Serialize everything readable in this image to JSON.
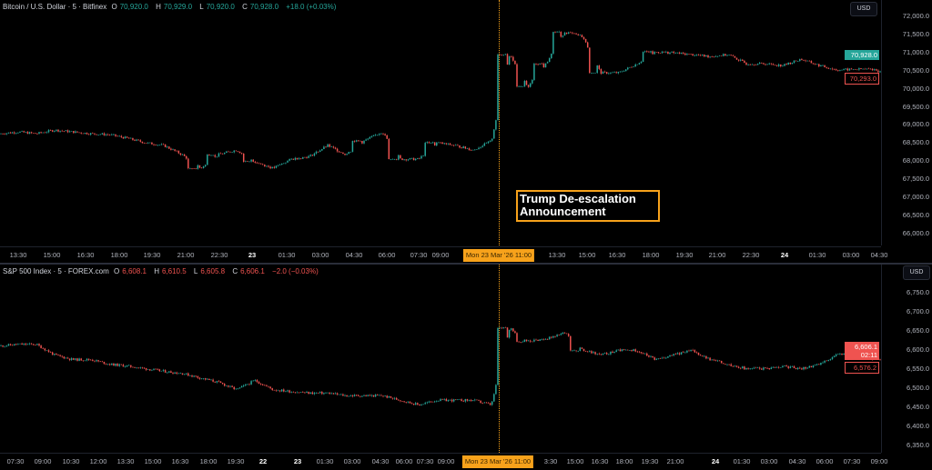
{
  "colors": {
    "up": "#26a69a",
    "down": "#ef5350",
    "crosshair": "#f7a21b"
  },
  "top": {
    "legend": {
      "symbol": "Bitcoin / U.S. Dollar · 5 · Bitfinex",
      "o_label": "O",
      "o": "70,920.0",
      "h_label": "H",
      "h": "70,929.0",
      "l_label": "L",
      "l": "70,920.0",
      "c_label": "C",
      "c": "70,928.0",
      "change": "+18.0 (+0.03%)"
    },
    "currency": "USD",
    "price_ticks": [
      "72,000.0",
      "71,500.0",
      "71,000.0",
      "70,500.0",
      "70,000.0",
      "69,500.0",
      "69,000.0",
      "68,500.0",
      "68,000.0",
      "67,500.0",
      "67,000.0",
      "66,500.0",
      "66,000.0"
    ],
    "last_price": "70,928.0",
    "prev_close": "70,293.0",
    "time_ticks": [
      "13:30",
      "15:00",
      "16:30",
      "18:00",
      "19:30",
      "21:00",
      "22:30",
      "23",
      "01:30",
      "03:00",
      "04:30",
      "06:00",
      "07:30",
      "09:00",
      "13:30",
      "15:00",
      "16:30",
      "18:00",
      "19:30",
      "21:00",
      "22:30",
      "24",
      "01:30",
      "03:00",
      "04:30"
    ],
    "crosshair_time": "Mon 23 Mar '26   11:00",
    "annotation": {
      "line1": "Trump De-escalation",
      "line2": "Announcement"
    }
  },
  "bottom": {
    "legend": {
      "symbol": "S&P 500 Index · 5 · FOREX.com",
      "o_label": "O",
      "o": "6,608.1",
      "h_label": "H",
      "h": "6,610.5",
      "l_label": "L",
      "l": "6,605.8",
      "c_label": "C",
      "c": "6,606.1",
      "change": "−2.0 (−0.03%)"
    },
    "currency": "USD",
    "price_ticks": [
      "6,750.0",
      "6,700.0",
      "6,650.0",
      "6,600.0",
      "6,550.0",
      "6,500.0",
      "6,450.0",
      "6,400.0",
      "6,350.0"
    ],
    "last_price": "6,606.1",
    "countdown": "02:11",
    "prev_close": "6,576.2",
    "time_ticks": [
      "07:30",
      "09:00",
      "10:30",
      "12:00",
      "13:30",
      "15:00",
      "16:30",
      "18:00",
      "19:30",
      "22",
      "23",
      "01:30",
      "03:00",
      "04:30",
      "06:00",
      "07:30",
      "09:00",
      "3:30",
      "15:00",
      "16:30",
      "18:00",
      "19:30",
      "21:00",
      "24",
      "01:30",
      "03:00",
      "04:30",
      "06:00",
      "07:30",
      "09:00"
    ],
    "crosshair_time": "Mon 23 Mar '26   11:00"
  },
  "chart_data": [
    {
      "type": "candlestick",
      "title": "Bitcoin / U.S. Dollar · 5 · Bitfinex",
      "ylim": [
        65650,
        72430
      ],
      "closes": [
        68737,
        68787,
        68737,
        68837,
        68787,
        68737,
        68712,
        68611,
        68486,
        68411,
        68160,
        67783,
        68160,
        68285,
        67959,
        67783,
        68034,
        68110,
        68411,
        68160,
        68536,
        68787,
        68034,
        68034,
        68486,
        68411,
        68285,
        68536,
        70921,
        70042,
        70670,
        71548,
        71423,
        70419,
        70419,
        70670,
        70996,
        70971,
        70921,
        70870,
        70921,
        70670,
        70670,
        70620,
        70795,
        70620,
        70494,
        70519,
        70519,
        70293
      ]
    },
    {
      "type": "candlestick",
      "title": "S&P 500 Index · 5 · FOREX.com",
      "ylim": [
        6329,
        6824
      ],
      "closes": [
        6610,
        6614,
        6614,
        6586,
        6574,
        6574,
        6562,
        6557,
        6550,
        6543,
        6538,
        6526,
        6514,
        6495,
        6519,
        6495,
        6490,
        6486,
        6486,
        6479,
        6479,
        6479,
        6467,
        6455,
        6467,
        6467,
        6467,
        6455,
        6657,
        6621,
        6629,
        6645,
        6598,
        6586,
        6598,
        6598,
        6574,
        6586,
        6598,
        6574,
        6562,
        6550,
        6550,
        6557,
        6550,
        6562,
        6586,
        6598,
        6574,
        6581
      ]
    }
  ]
}
